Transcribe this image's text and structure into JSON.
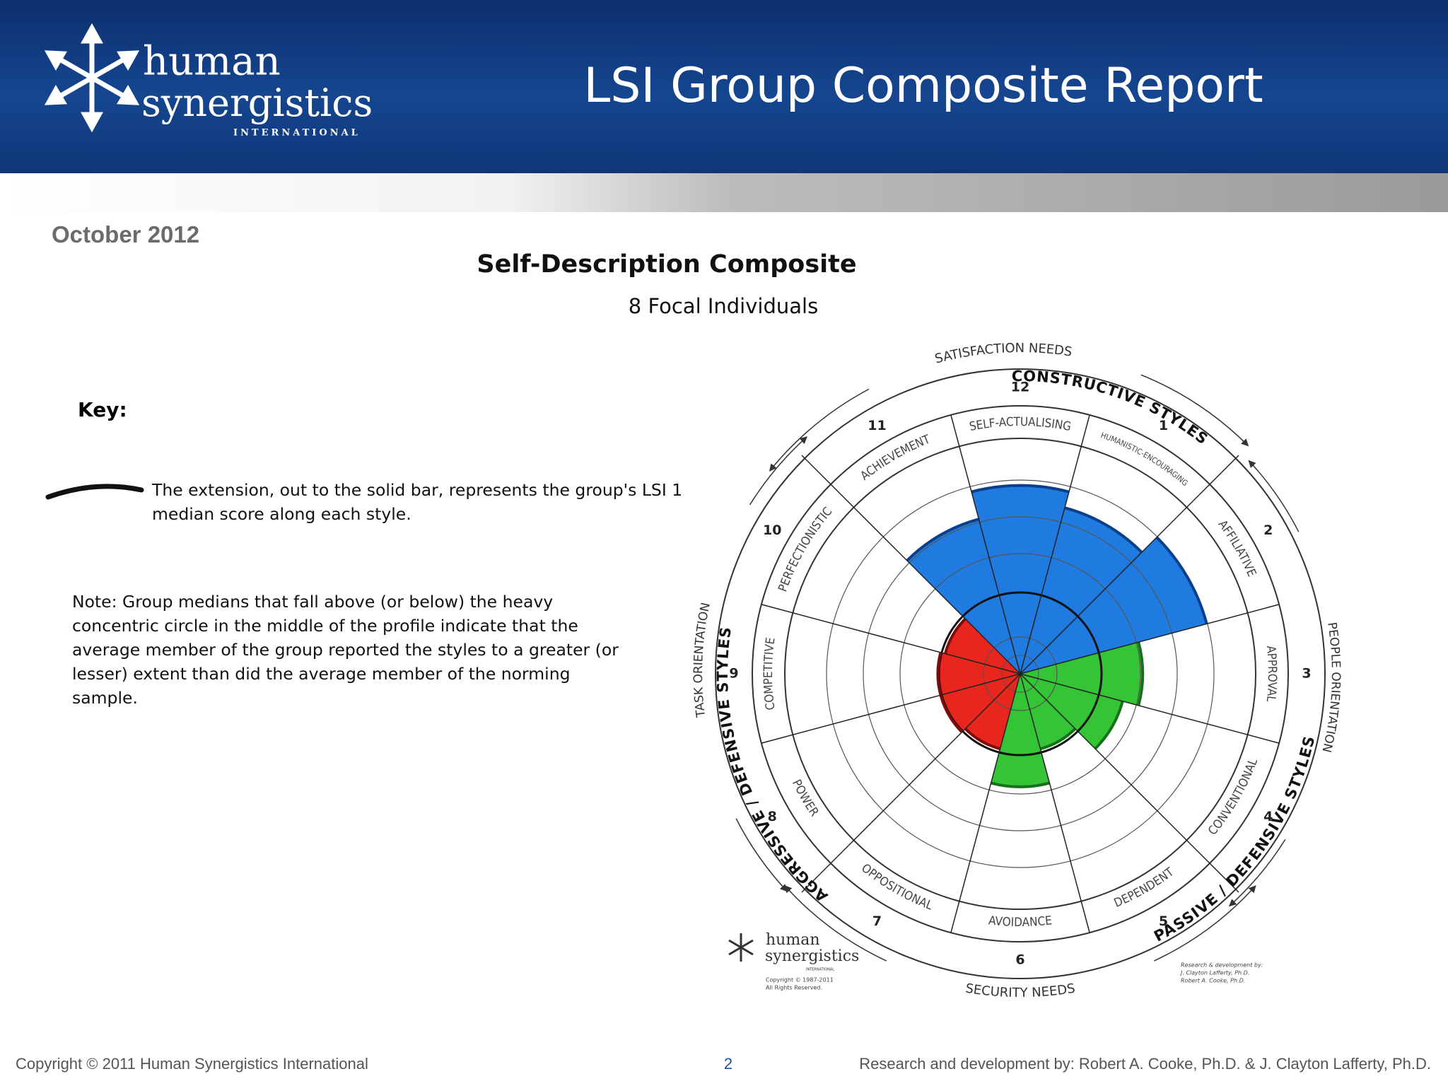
{
  "header": {
    "logo": {
      "line1": "human",
      "line2": "synergistics",
      "line3": "INTERNATIONAL"
    },
    "title": "LSI Group Composite Report"
  },
  "date": "October 2012",
  "report": {
    "title": "Self-Description Composite",
    "subtitle": "8 Focal Individuals"
  },
  "key": {
    "heading": "Key:",
    "lines": [
      "The extension, out to the solid bar, represents the group's LSI 1",
      "median score along each style."
    ]
  },
  "note": {
    "lines": [
      "Note: Group medians that fall above (or below) the heavy",
      "concentric circle in the middle of the profile indicate that the",
      "average member of the group reported the styles to a greater (or",
      "lesser) extent than did the average member of the norming",
      "sample."
    ]
  },
  "circumplex": {
    "styles": [
      {
        "number": 1,
        "name": "HUMANISTIC-ENCOURAGING",
        "score": 73,
        "color": "#1f7be0"
      },
      {
        "number": 2,
        "name": "AFFILIATIVE",
        "score": 82,
        "color": "#1f7be0"
      },
      {
        "number": 3,
        "name": "APPROVAL",
        "score": 52,
        "color": "#35c435"
      },
      {
        "number": 4,
        "name": "CONVENTIONAL",
        "score": 45,
        "color": "#35c435"
      },
      {
        "number": 5,
        "name": "DEPENDENT",
        "score": 33,
        "color": "#35c435"
      },
      {
        "number": 6,
        "name": "AVOIDANCE",
        "score": 48,
        "color": "#35c435"
      },
      {
        "number": 7,
        "name": "OPPOSITIONAL",
        "score": 33,
        "color": "#e8261e"
      },
      {
        "number": 8,
        "name": "POWER",
        "score": 35,
        "color": "#e8261e"
      },
      {
        "number": 9,
        "name": "COMPETITIVE",
        "score": 35,
        "color": "#e8261e"
      },
      {
        "number": 10,
        "name": "PERFECTIONISTIC",
        "score": 33,
        "color": "#e8261e"
      },
      {
        "number": 11,
        "name": "ACHIEVEMENT",
        "score": 68,
        "color": "#1f7be0"
      },
      {
        "number": 12,
        "name": "SELF-ACTUALISING",
        "score": 80,
        "color": "#1f7be0"
      }
    ],
    "groups": [
      "CONSTRUCTIVE STYLES",
      "PASSIVE / DEFENSIVE STYLES",
      "AGGRESSIVE / DEFENSIVE STYLES"
    ],
    "needs": [
      "SATISFACTION NEEDS",
      "SECURITY NEEDS"
    ],
    "orientations": [
      "PEOPLE ORIENTATION",
      "TASK ORIENTATION"
    ],
    "logo": {
      "line1": "human",
      "line2": "synergistics",
      "line3": "INTERNATIONAL",
      "copyright": "Copyright © 1987-2011",
      "rights": "All Rights Reserved."
    },
    "credits": [
      "Research & development by:",
      "J. Clayton Lafferty, Ph.D.",
      "Robert A. Cooke, Ph.D."
    ]
  },
  "footer": {
    "copyright": "Copyright © 2011 Human Synergistics International",
    "page": "2",
    "credits": "Research and development by: Robert A. Cooke, Ph.D. & J. Clayton Lafferty, Ph.D."
  }
}
